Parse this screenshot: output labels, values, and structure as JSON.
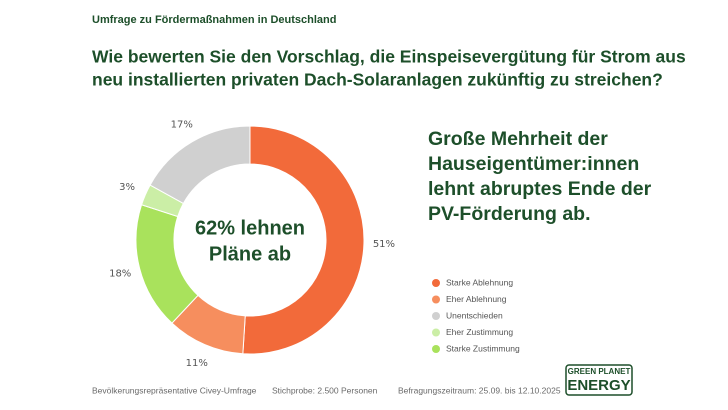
{
  "header": {
    "kicker": "Umfrage zu Fördermaßnahmen  in Deutschland",
    "question": [
      "Wie bewerten Sie den Vorschlag, die Einspeisevergütung für Strom aus",
      "neu installierten privaten Dach-Solaranlagen zukünftig zu streichen?"
    ]
  },
  "headline": [
    "Große Mehrheit der",
    "Hauseigentümer:innen",
    "lehnt abruptes Ende der",
    "PV-Förderung ab."
  ],
  "chart_data": {
    "type": "pie",
    "center_label": [
      "62% lehnen",
      "Pläne ab"
    ],
    "slices": [
      "Starke Ablehnung",
      "Eher Ablehnung",
      "Starke Zustimmung",
      "Eher Zustimmung",
      "Unentschieden"
    ],
    "values": [
      51,
      11,
      18,
      3,
      17
    ],
    "value_labels": [
      "51%",
      "11%",
      "18%",
      "3%",
      "17%"
    ],
    "colors": [
      "#f26a3a",
      "#f68e5e",
      "#a9e25c",
      "#cbeea6",
      "#d0d0d0"
    ],
    "legend": [
      {
        "name": "Starke Ablehnung",
        "color": "#f26a3a"
      },
      {
        "name": "Eher Ablehnung",
        "color": "#f68e5e"
      },
      {
        "name": "Unentschieden",
        "color": "#d0d0d0"
      },
      {
        "name": "Eher Zustimmung",
        "color": "#cbeea6"
      },
      {
        "name": "Starke Zustimmung",
        "color": "#a9e25c"
      }
    ]
  },
  "footer": [
    "Bevölkerungsrepräsentative Civey-Umfrage",
    "Stichprobe: 2.500 Personen",
    "Befragungszeitraum: 25.09. bis 12.10.2025"
  ],
  "logo": [
    "GREEN PLANET",
    "ENERGY"
  ]
}
